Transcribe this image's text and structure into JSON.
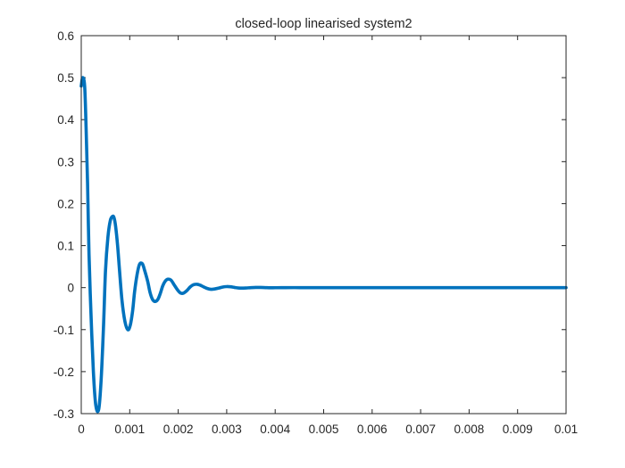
{
  "chart_data": {
    "type": "line",
    "title": "closed-loop linearised system2",
    "xlabel": "",
    "ylabel": "",
    "xlim": [
      0,
      0.01
    ],
    "ylim": [
      -0.3,
      0.6
    ],
    "x_ticks": [
      0,
      0.001,
      0.002,
      0.003,
      0.004,
      0.005,
      0.006,
      0.007,
      0.008,
      0.009,
      0.01
    ],
    "x_tick_labels": [
      "0",
      "0.001",
      "0.002",
      "0.003",
      "0.004",
      "0.005",
      "0.006",
      "0.007",
      "0.008",
      "0.009",
      "0.01"
    ],
    "y_ticks": [
      -0.3,
      -0.2,
      -0.1,
      0,
      0.1,
      0.2,
      0.3,
      0.4,
      0.5,
      0.6
    ],
    "y_tick_labels": [
      "-0.3",
      "-0.2",
      "-0.1",
      "0",
      "0.1",
      "0.2",
      "0.3",
      "0.4",
      "0.5",
      "0.6"
    ],
    "grid": false,
    "line_color": "#0072BD",
    "series": [
      {
        "x": [
          0,
          3e-05,
          7e-05,
          0.0001,
          0.00013,
          0.00016,
          0.0002,
          0.00025,
          0.0003,
          0.00036,
          0.00041,
          0.00046,
          0.0005,
          0.00055,
          0.0006,
          0.00065,
          0.00068,
          0.00071,
          0.00075,
          0.00079,
          0.00084,
          0.0009,
          0.00096,
          0.00101,
          0.00106,
          0.0011,
          0.00115,
          0.0012,
          0.00126,
          0.00131,
          0.00137,
          0.00142,
          0.00147,
          0.00152,
          0.00158,
          0.00163,
          0.00168,
          0.00173,
          0.00178,
          0.00185,
          0.00192,
          0.00199,
          0.00205,
          0.00211,
          0.00218,
          0.00225,
          0.00232,
          0.00239,
          0.00245,
          0.00252,
          0.0026,
          0.00268,
          0.00276,
          0.00284,
          0.00292,
          0.003,
          0.00308,
          0.00316,
          0.00324,
          0.00332,
          0.0034,
          0.0035,
          0.0036,
          0.0037,
          0.0038,
          0.0039,
          0.004,
          0.0042,
          0.0044,
          0.0046,
          0.0048,
          0.005,
          0.0055,
          0.006,
          0.007,
          0.008,
          0.009,
          0.01
        ],
        "y": [
          0.48,
          0.5,
          0.48,
          0.38,
          0.25,
          0.08,
          -0.06,
          -0.2,
          -0.28,
          -0.29,
          -0.22,
          -0.09,
          0.04,
          0.12,
          0.16,
          0.17,
          0.165,
          0.145,
          0.1,
          0.04,
          -0.03,
          -0.08,
          -0.1,
          -0.09,
          -0.055,
          -0.01,
          0.03,
          0.055,
          0.057,
          0.04,
          0.015,
          -0.012,
          -0.028,
          -0.033,
          -0.028,
          -0.014,
          0.004,
          0.015,
          0.02,
          0.018,
          0.006,
          -0.006,
          -0.013,
          -0.013,
          -0.007,
          0.002,
          0.007,
          0.008,
          0.006,
          0.002,
          -0.002,
          -0.004,
          -0.003,
          -0.001,
          0.0015,
          0.0025,
          0.002,
          0.0005,
          -0.0008,
          -0.0012,
          -0.0008,
          0,
          0.0005,
          0.0004,
          0,
          -0.0003,
          -0.0002,
          0,
          0.0001,
          0,
          0,
          0,
          0,
          0,
          0,
          0,
          0,
          0
        ]
      }
    ]
  }
}
